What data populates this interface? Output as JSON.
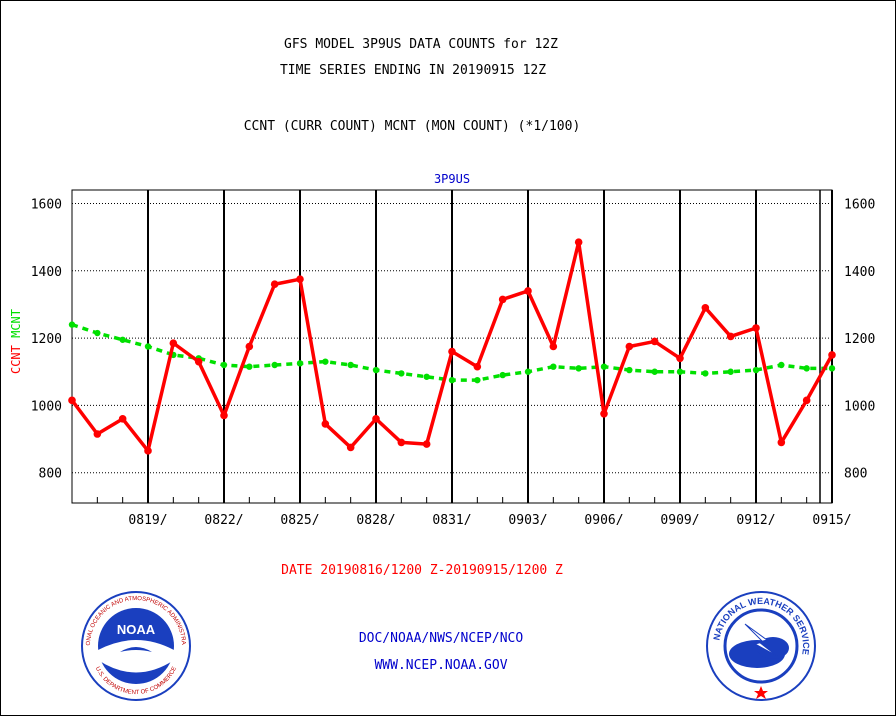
{
  "header": {
    "title_line1": "GFS MODEL 3P9US DATA COUNTS for 12Z",
    "title_line2": "TIME SERIES ENDING IN 20190915 12Z",
    "subtitle": "CCNT (CURR COUNT) MCNT (MON COUNT) (*1/100)"
  },
  "footer": {
    "date_range": "DATE 20190816/1200 Z-20190915/1200 Z",
    "org": "DOC/NOAA/NWS/NCEP/NCO",
    "website": "WWW.NCEP.NOAA.GOV"
  },
  "logos": {
    "noaa": {
      "center_text": "NOAA",
      "ring_text": "NATIONAL OCEANIC AND ATMOSPHERIC ADMINISTRATION",
      "bottom_text": "U.S. DEPARTMENT OF COMMERCE"
    },
    "nws": {
      "ring_text": "NATIONAL WEATHER SERVICE"
    }
  },
  "colors": {
    "ccnt": "#ff0000",
    "mcnt": "#00e000",
    "title_blue": "#0000cc",
    "logo_blue": "#1a3fbf"
  },
  "chart_data": {
    "type": "line",
    "title": "3P9US",
    "ylabel_parts": [
      "CCNT",
      "MCNT"
    ],
    "ylim": [
      710,
      1640
    ],
    "yticks": [
      800,
      1000,
      1200,
      1400,
      1600
    ],
    "x_tick_labels": [
      "0819/",
      "0822/",
      "0825/",
      "0828/",
      "0831/",
      "0903/",
      "0906/",
      "0909/",
      "0912/",
      "0915/"
    ],
    "x": [
      "0816",
      "0817",
      "0818",
      "0819",
      "0820",
      "0821",
      "0822",
      "0823",
      "0824",
      "0825",
      "0826",
      "0827",
      "0828",
      "0829",
      "0830",
      "0831",
      "0901",
      "0902",
      "0903",
      "0904",
      "0905",
      "0906",
      "0907",
      "0908",
      "0909",
      "0910",
      "0911",
      "0912",
      "0913",
      "0914",
      "0915"
    ],
    "grid": true,
    "series": [
      {
        "name": "CCNT",
        "color": "#ff0000",
        "values": [
          1015,
          915,
          960,
          865,
          1185,
          1130,
          970,
          1175,
          1360,
          1375,
          945,
          875,
          960,
          890,
          885,
          1160,
          1115,
          1315,
          1340,
          1175,
          1485,
          975,
          1175,
          1190,
          1140,
          1290,
          1205,
          1230,
          890,
          1015,
          1150
        ]
      },
      {
        "name": "MCNT",
        "color": "#00e000",
        "values": [
          1240,
          1215,
          1195,
          1175,
          1150,
          1140,
          1120,
          1115,
          1120,
          1125,
          1130,
          1120,
          1105,
          1095,
          1085,
          1075,
          1075,
          1090,
          1100,
          1115,
          1110,
          1115,
          1105,
          1100,
          1100,
          1095,
          1100,
          1105,
          1120,
          1110,
          1110
        ]
      }
    ]
  }
}
